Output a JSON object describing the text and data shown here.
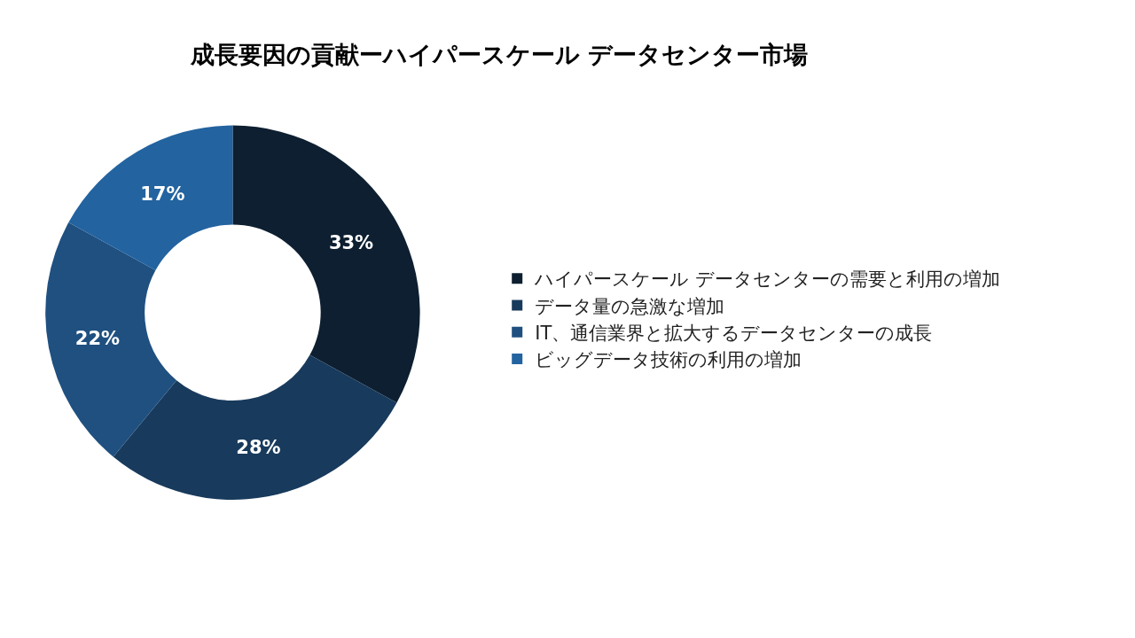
{
  "chart_data": {
    "type": "donut",
    "title": "成長要因の貢献ーハイパースケール データセンター市場",
    "categories": [
      "ハイパースケール データセンターの需要と利用の増加",
      "データ量の急激な増加",
      "IT、通信業界と拡大するデータセンターの成長",
      "ビッグデータ技術の利用の増加"
    ],
    "values": [
      33,
      28,
      22,
      17
    ],
    "value_labels": [
      "33%",
      "28%",
      "22%",
      "17%"
    ],
    "colors": [
      "#0d1f30",
      "#183a5c",
      "#1f5080",
      "#2363a0"
    ],
    "legend": "right"
  }
}
